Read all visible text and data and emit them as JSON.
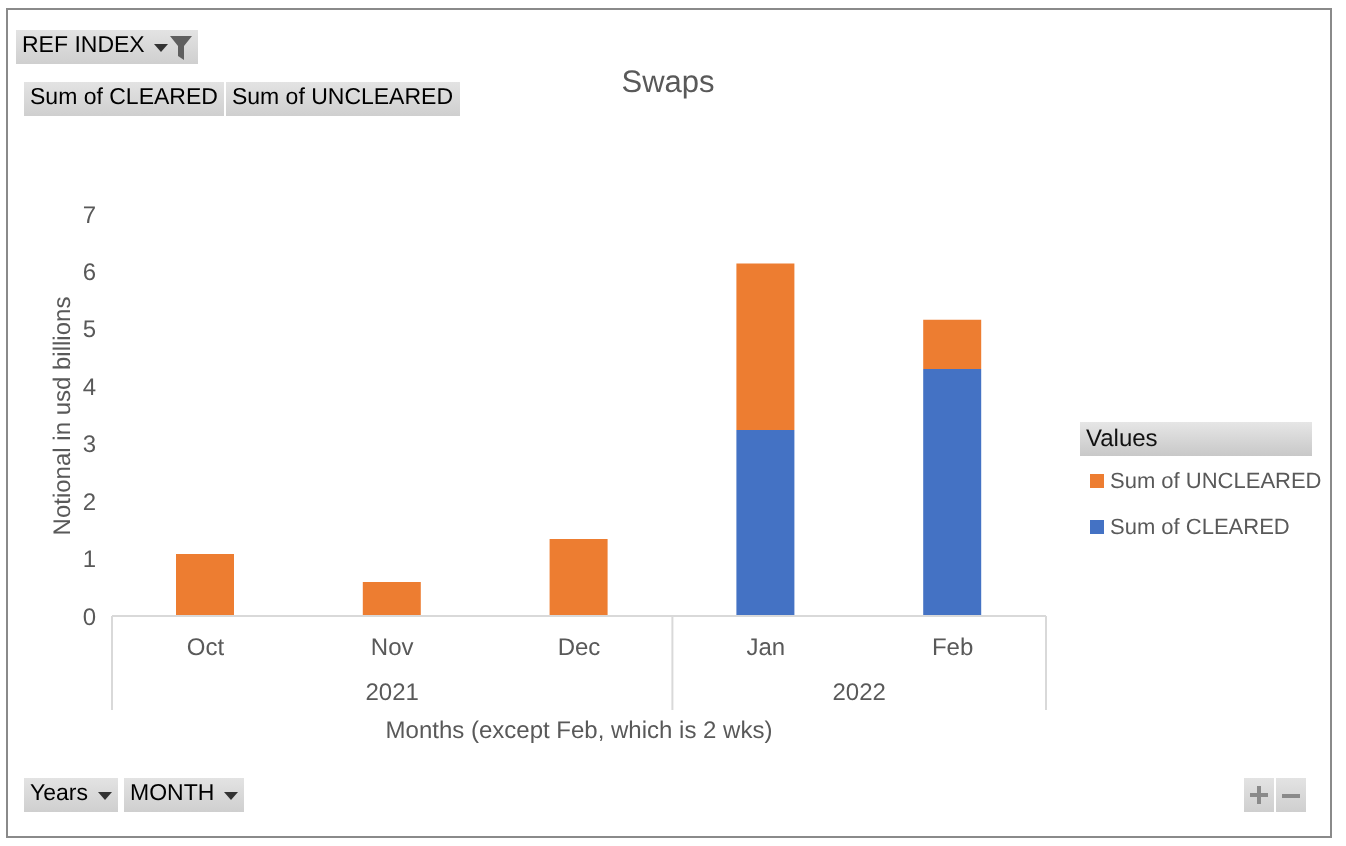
{
  "chart_data": {
    "type": "bar",
    "title": "Swaps",
    "xlabel": "Months (except Feb, which is 2 wks)",
    "ylabel": "Notional in usd billions",
    "legend_title": "Values",
    "categories": [
      "Oct",
      "Nov",
      "Dec",
      "Jan",
      "Feb"
    ],
    "series": [
      {
        "name": "Sum of CLEARED",
        "color": "#4472c4",
        "values": [
          null,
          null,
          null,
          3.24,
          4.3
        ]
      },
      {
        "name": "Sum of UNCLEARED",
        "color": "#ed7d31",
        "values": [
          1.08,
          0.59,
          1.34,
          2.9,
          0.86
        ]
      }
    ],
    "stacked": true,
    "ylim": [
      0,
      7
    ],
    "yticks": [
      0,
      1,
      2,
      3,
      4,
      5,
      6,
      7
    ],
    "legend": "right",
    "annotations": [
      "REF INDEX",
      "Sum of CLEARED",
      "Sum of UNCLEARED",
      "2021",
      "2022",
      "Years",
      "MONTH"
    ]
  }
}
